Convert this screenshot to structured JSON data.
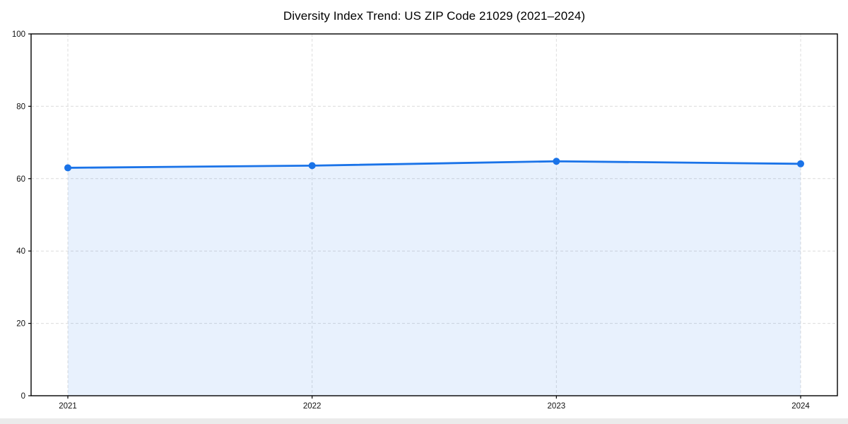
{
  "chart_data": {
    "type": "area",
    "title": "Diversity Index Trend: US ZIP Code 21029 (2021–2024)",
    "categories": [
      "2021",
      "2022",
      "2023",
      "2024"
    ],
    "series": [
      {
        "name": "Diversity Index",
        "values": [
          63.0,
          63.6,
          64.8,
          64.1
        ]
      }
    ],
    "xlabel": "",
    "ylabel": "",
    "ylim": [
      0,
      100
    ],
    "yticks": [
      0,
      20,
      40,
      60,
      80,
      100
    ],
    "grid": true,
    "grid_style": "dashed",
    "legend_position": "none",
    "line_color": "#1a73e8",
    "fill_opacity": 0.1,
    "gridline_color": "#dcdcdc",
    "axis_color": "#000000",
    "marker": "circle"
  }
}
